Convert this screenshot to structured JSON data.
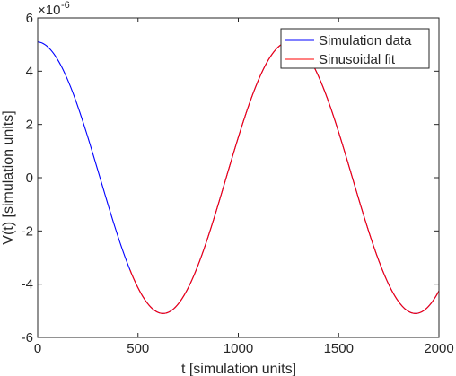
{
  "chart_data": {
    "type": "line",
    "title": "",
    "xlabel": "t [simulation units]",
    "ylabel": "V(t) [simulation units]",
    "y_exponent_label": "×10",
    "y_exponent_value": "-6",
    "xlim": [
      0,
      2000
    ],
    "ylim": [
      -6,
      6
    ],
    "x_ticks": [
      0,
      500,
      1000,
      1500,
      2000
    ],
    "y_ticks": [
      -6,
      -4,
      -2,
      0,
      2,
      4,
      6
    ],
    "x_tick_labels": [
      "0",
      "500",
      "1000",
      "1500",
      "2000"
    ],
    "y_tick_labels": [
      "-6",
      "-4",
      "-2",
      "0",
      "2",
      "4",
      "6"
    ],
    "grid": false,
    "legend_position": "top-right",
    "series": [
      {
        "name": "Simulation data",
        "color": "#0000ff",
        "x_start": 0,
        "x_end": 2000,
        "model": "amplitude*cos(2*pi*(t - t_peak)/period)",
        "amplitude": 5.1,
        "period": 1258,
        "t_peak": 1254
      },
      {
        "name": "Sinusoidal fit",
        "color": "#ff0000",
        "x_start": 460,
        "x_end": 2000,
        "model": "amplitude*cos(2*pi*(t - t_peak)/period)",
        "amplitude": 5.1,
        "period": 1258,
        "t_peak": 1254
      }
    ]
  }
}
